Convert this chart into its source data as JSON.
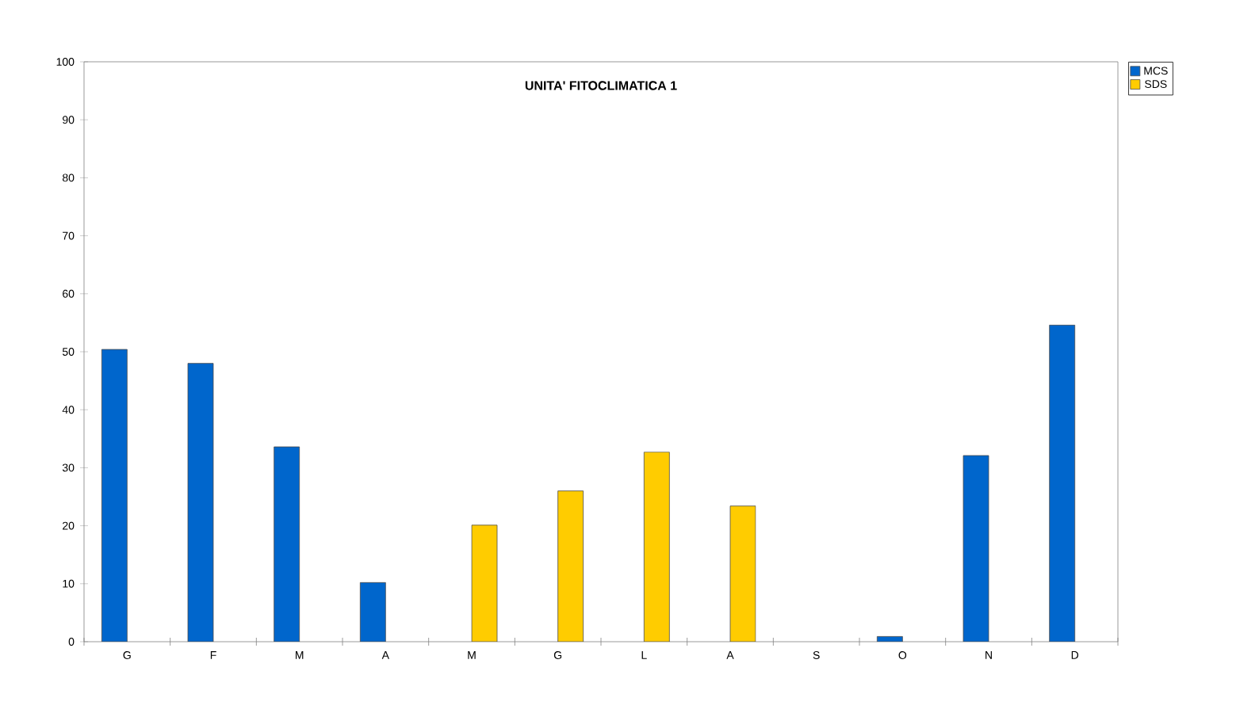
{
  "chart_data": {
    "type": "bar",
    "title": "UNITA' FITOCLIMATICA 1",
    "categories": [
      "G",
      "F",
      "M",
      "A",
      "M",
      "G",
      "L",
      "A",
      "S",
      "O",
      "N",
      "D"
    ],
    "series": [
      {
        "name": "MCS",
        "color": "#0066cc",
        "values": [
          50.4,
          48.0,
          33.6,
          10.2,
          null,
          null,
          null,
          null,
          null,
          0.9,
          32.1,
          54.6
        ]
      },
      {
        "name": "SDS",
        "color": "#ffcc00",
        "values": [
          null,
          null,
          null,
          null,
          20.1,
          26.0,
          32.7,
          23.4,
          null,
          null,
          null,
          null
        ]
      }
    ],
    "ylim": [
      0,
      100
    ],
    "yticks": [
      0,
      10,
      20,
      30,
      40,
      50,
      60,
      70,
      80,
      90,
      100
    ],
    "grid": false,
    "legend": "top right"
  }
}
